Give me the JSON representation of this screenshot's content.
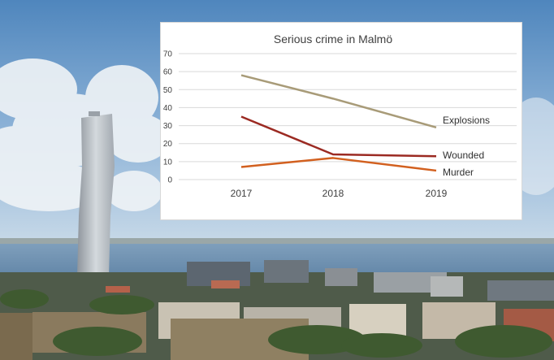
{
  "colors": {
    "explosions": "#A89B78",
    "wounded": "#9B2A22",
    "murder": "#D2601F",
    "grid": "#D9D9D9"
  },
  "chart_data": {
    "type": "line",
    "title": "Serious crime in Malmö",
    "categories": [
      "2017",
      "2018",
      "2019"
    ],
    "ylim": [
      0,
      70
    ],
    "yticks": [
      "0",
      "10",
      "20",
      "30",
      "40",
      "50",
      "60",
      "70"
    ],
    "grid": true,
    "legend": "inline labels at line ends",
    "series": [
      {
        "name": "Explosions",
        "values": [
          58,
          45,
          29
        ]
      },
      {
        "name": "Wounded",
        "values": [
          35,
          14,
          13
        ]
      },
      {
        "name": "Murder",
        "values": [
          7,
          12,
          5
        ]
      }
    ]
  }
}
